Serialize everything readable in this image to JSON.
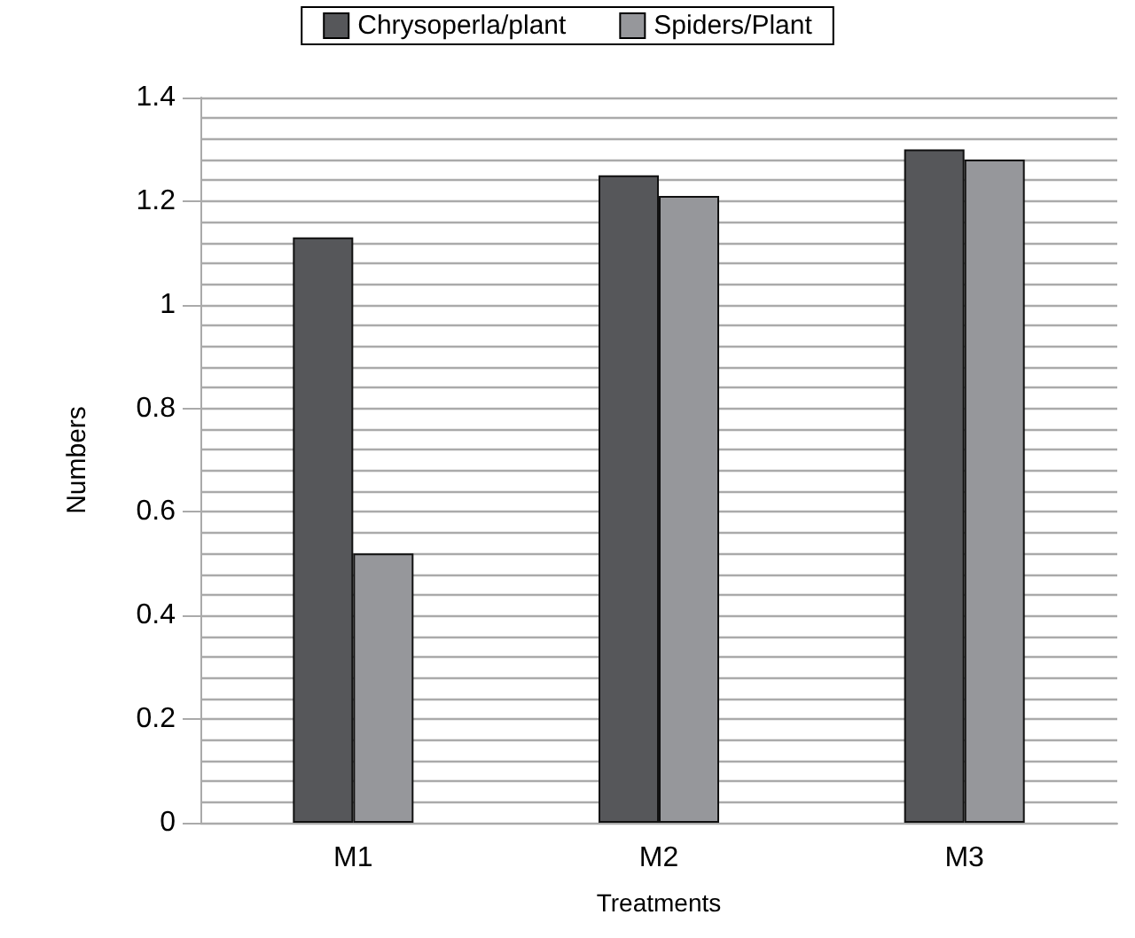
{
  "chart_data": {
    "type": "bar",
    "xlabel": "Treatments",
    "ylabel": "Numbers",
    "categories": [
      "M1",
      "M2",
      "M3"
    ],
    "series": [
      {
        "name": "Chrysoperla/plant",
        "color": "#56575a",
        "values": [
          1.13,
          1.25,
          1.3
        ]
      },
      {
        "name": "Spiders/Plant",
        "color": "#96979b",
        "values": [
          0.52,
          1.21,
          1.28
        ]
      }
    ],
    "ylim": [
      0,
      1.4
    ],
    "yticks": [
      0,
      0.2,
      0.4,
      0.6,
      0.8,
      1,
      1.2,
      1.4
    ],
    "grid": true,
    "legend": "top"
  }
}
